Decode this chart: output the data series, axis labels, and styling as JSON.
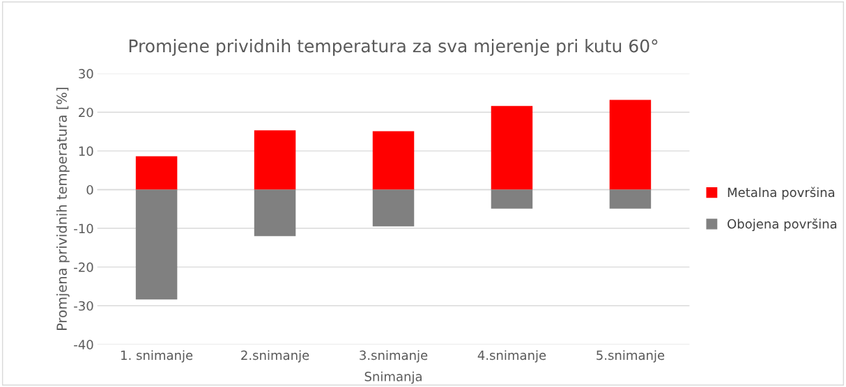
{
  "chart_data": {
    "type": "bar",
    "title": "Promjene prividnih temperatura za sva mjerenje pri kutu 60°",
    "xlabel": "Snimanja",
    "ylabel": "Promjena prividnih temperatura [%]",
    "categories": [
      "1. snimanje",
      "2.snimanje",
      "3.snimanje",
      "4.snimanje",
      "5.snimanje"
    ],
    "series": [
      {
        "name": "Metalna površina",
        "color": "#ff0000",
        "values": [
          8.6,
          15.3,
          15.1,
          21.6,
          23.2
        ]
      },
      {
        "name": "Obojena površina",
        "color": "#808080",
        "values": [
          -28.4,
          -12.0,
          -9.5,
          -4.9,
          -4.9
        ]
      }
    ],
    "stacked": true,
    "ylim": [
      -40,
      30
    ],
    "yticks": [
      -40,
      -30,
      -20,
      -10,
      0,
      10,
      20,
      30
    ],
    "grid": "y",
    "legend": "right"
  }
}
